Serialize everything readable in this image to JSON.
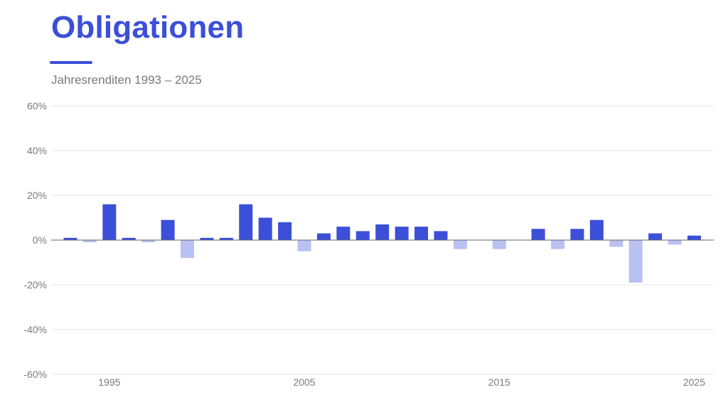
{
  "header": {
    "title": "Obligationen",
    "subtitle": "Jahresrenditen 1993 – 2025"
  },
  "colors": {
    "positive": "#3b4fd8",
    "negative": "#b9c1f2",
    "grid": "#e6e6e6",
    "zero_line": "#666666",
    "tick_text": "#7a7a7a",
    "title": "#3b4fd8"
  },
  "chart_data": {
    "type": "bar",
    "title": "Obligationen",
    "subtitle": "Jahresrenditen 1993 – 2025",
    "xlabel": "",
    "ylabel": "",
    "ylim": [
      -60,
      60
    ],
    "yticks": [
      -60,
      -40,
      -20,
      0,
      20,
      40,
      60
    ],
    "ytick_labels": [
      "-60%",
      "-40%",
      "-20%",
      "0%",
      "20%",
      "40%",
      "60%"
    ],
    "xticks": [
      1995,
      2005,
      2015,
      2025
    ],
    "xtick_labels": [
      "1995",
      "2005",
      "2015",
      "2025"
    ],
    "grid": true,
    "legend": "none",
    "categories": [
      1993,
      1994,
      1995,
      1996,
      1997,
      1998,
      1999,
      2000,
      2001,
      2002,
      2003,
      2004,
      2005,
      2006,
      2007,
      2008,
      2009,
      2010,
      2011,
      2012,
      2013,
      2014,
      2015,
      2016,
      2017,
      2018,
      2019,
      2020,
      2021,
      2022,
      2023,
      2024,
      2025
    ],
    "values": [
      1,
      -1,
      16,
      1,
      -1,
      9,
      -8,
      1,
      1,
      16,
      10,
      8,
      -5,
      3,
      6,
      4,
      7,
      6,
      6,
      4,
      -4,
      0,
      -4,
      0,
      5,
      -4,
      5,
      9,
      -3,
      -19,
      3,
      -2,
      2
    ]
  }
}
